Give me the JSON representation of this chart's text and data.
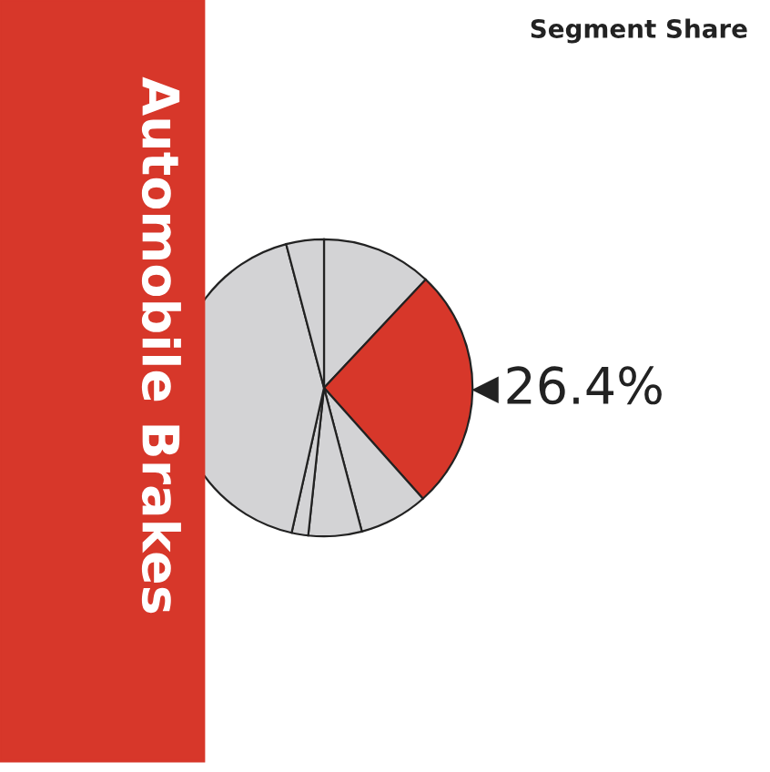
{
  "chart_data": {
    "type": "pie",
    "title": "Automobile Brakes",
    "subtitle": "Segment Share",
    "categories": [
      null,
      null,
      null,
      null,
      null,
      null,
      null
    ],
    "values": [
      12.0,
      26.4,
      7.5,
      5.8,
      1.8,
      42.4,
      4.1
    ],
    "colors": [
      "#d3d3d5",
      "#d7372a",
      "#d3d3d5",
      "#d3d3d5",
      "#d3d3d5",
      "#d3d3d5",
      "#d3d3d5"
    ],
    "value_labels": [
      null,
      "26.4%",
      null,
      null,
      null,
      null,
      null
    ]
  }
}
